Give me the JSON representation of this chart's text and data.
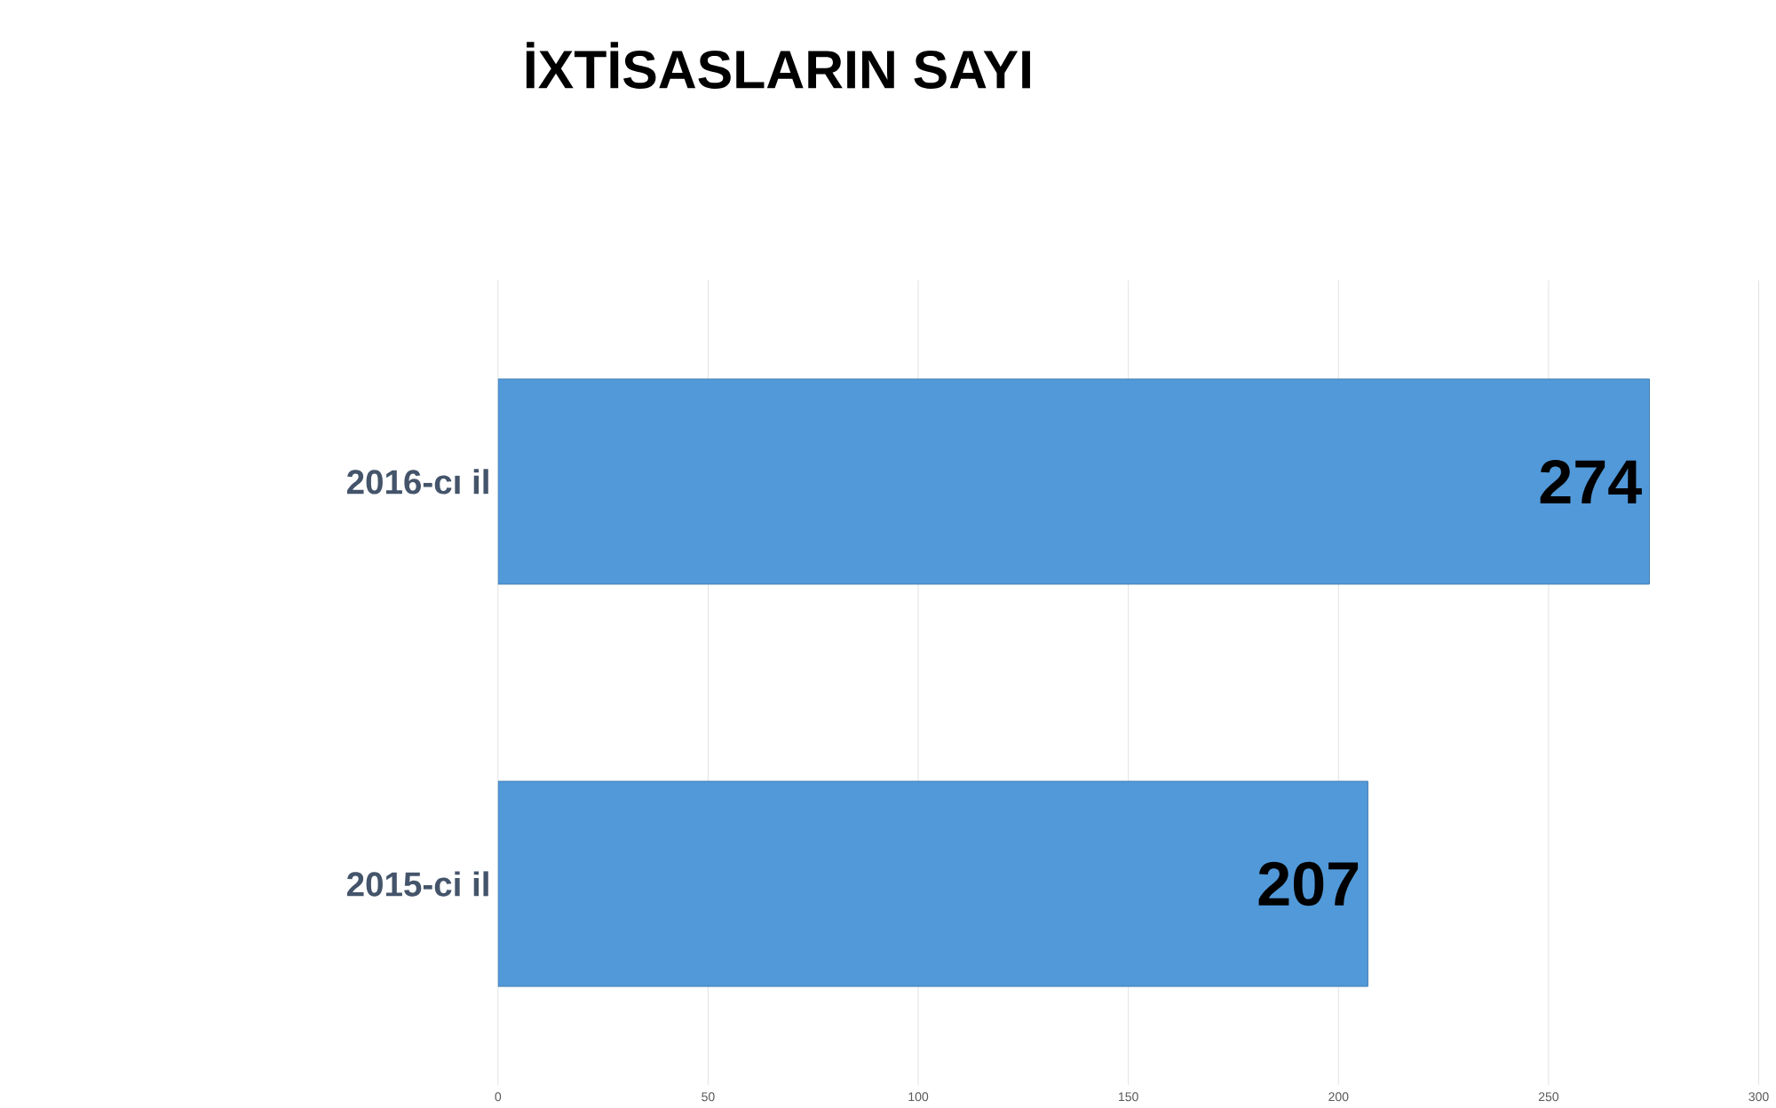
{
  "chart_data": {
    "type": "bar",
    "orientation": "horizontal",
    "title": "İXTİSASLARIN SAYI",
    "categories": [
      "2016-cı il",
      "2015-ci il"
    ],
    "values": [
      274,
      207
    ],
    "color": "#5199d9",
    "xlim": [
      0,
      300
    ],
    "xticks": [
      0,
      50,
      100,
      150,
      200,
      250,
      300
    ],
    "grid": "x",
    "data_labels": true
  }
}
